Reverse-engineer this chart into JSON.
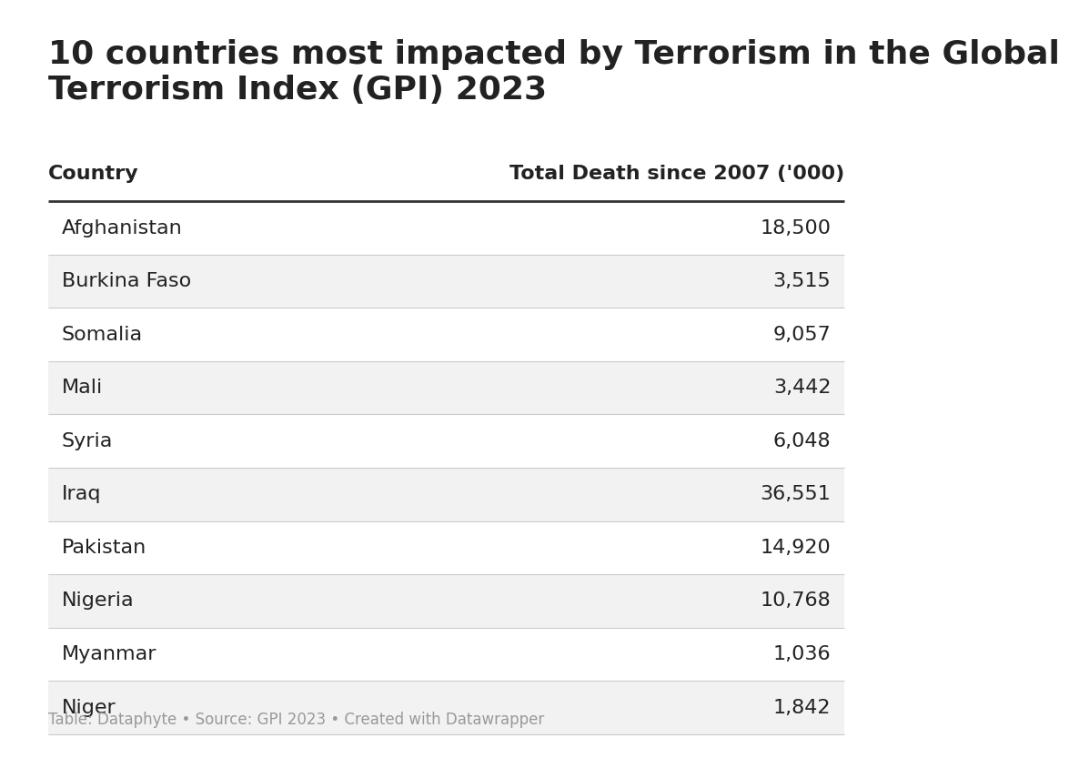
{
  "title": "10 countries most impacted by Terrorism in the Global\nTerrorism Index (GPI) 2023",
  "col_header_left": "Country",
  "col_header_right": "Total Death since 2007 ('000)",
  "rows": [
    {
      "country": "Afghanistan",
      "value": "18,500"
    },
    {
      "country": "Burkina Faso",
      "value": "3,515"
    },
    {
      "country": "Somalia",
      "value": "9,057"
    },
    {
      "country": "Mali",
      "value": "3,442"
    },
    {
      "country": "Syria",
      "value": "6,048"
    },
    {
      "country": "Iraq",
      "value": "36,551"
    },
    {
      "country": "Pakistan",
      "value": "14,920"
    },
    {
      "country": "Nigeria",
      "value": "10,768"
    },
    {
      "country": "Myanmar",
      "value": "1,036"
    },
    {
      "country": "Niger",
      "value": "1,842"
    }
  ],
  "footer": "Table: Dataphyte • Source: GPI 2023 • Created with Datawrapper",
  "bg_color": "#ffffff",
  "row_alt_color": "#f2f2f2",
  "row_white_color": "#ffffff",
  "header_line_color": "#333333",
  "row_line_color": "#cccccc",
  "title_fontsize": 26,
  "header_fontsize": 16,
  "row_fontsize": 16,
  "footer_fontsize": 12,
  "text_color": "#222222",
  "footer_color": "#999999"
}
